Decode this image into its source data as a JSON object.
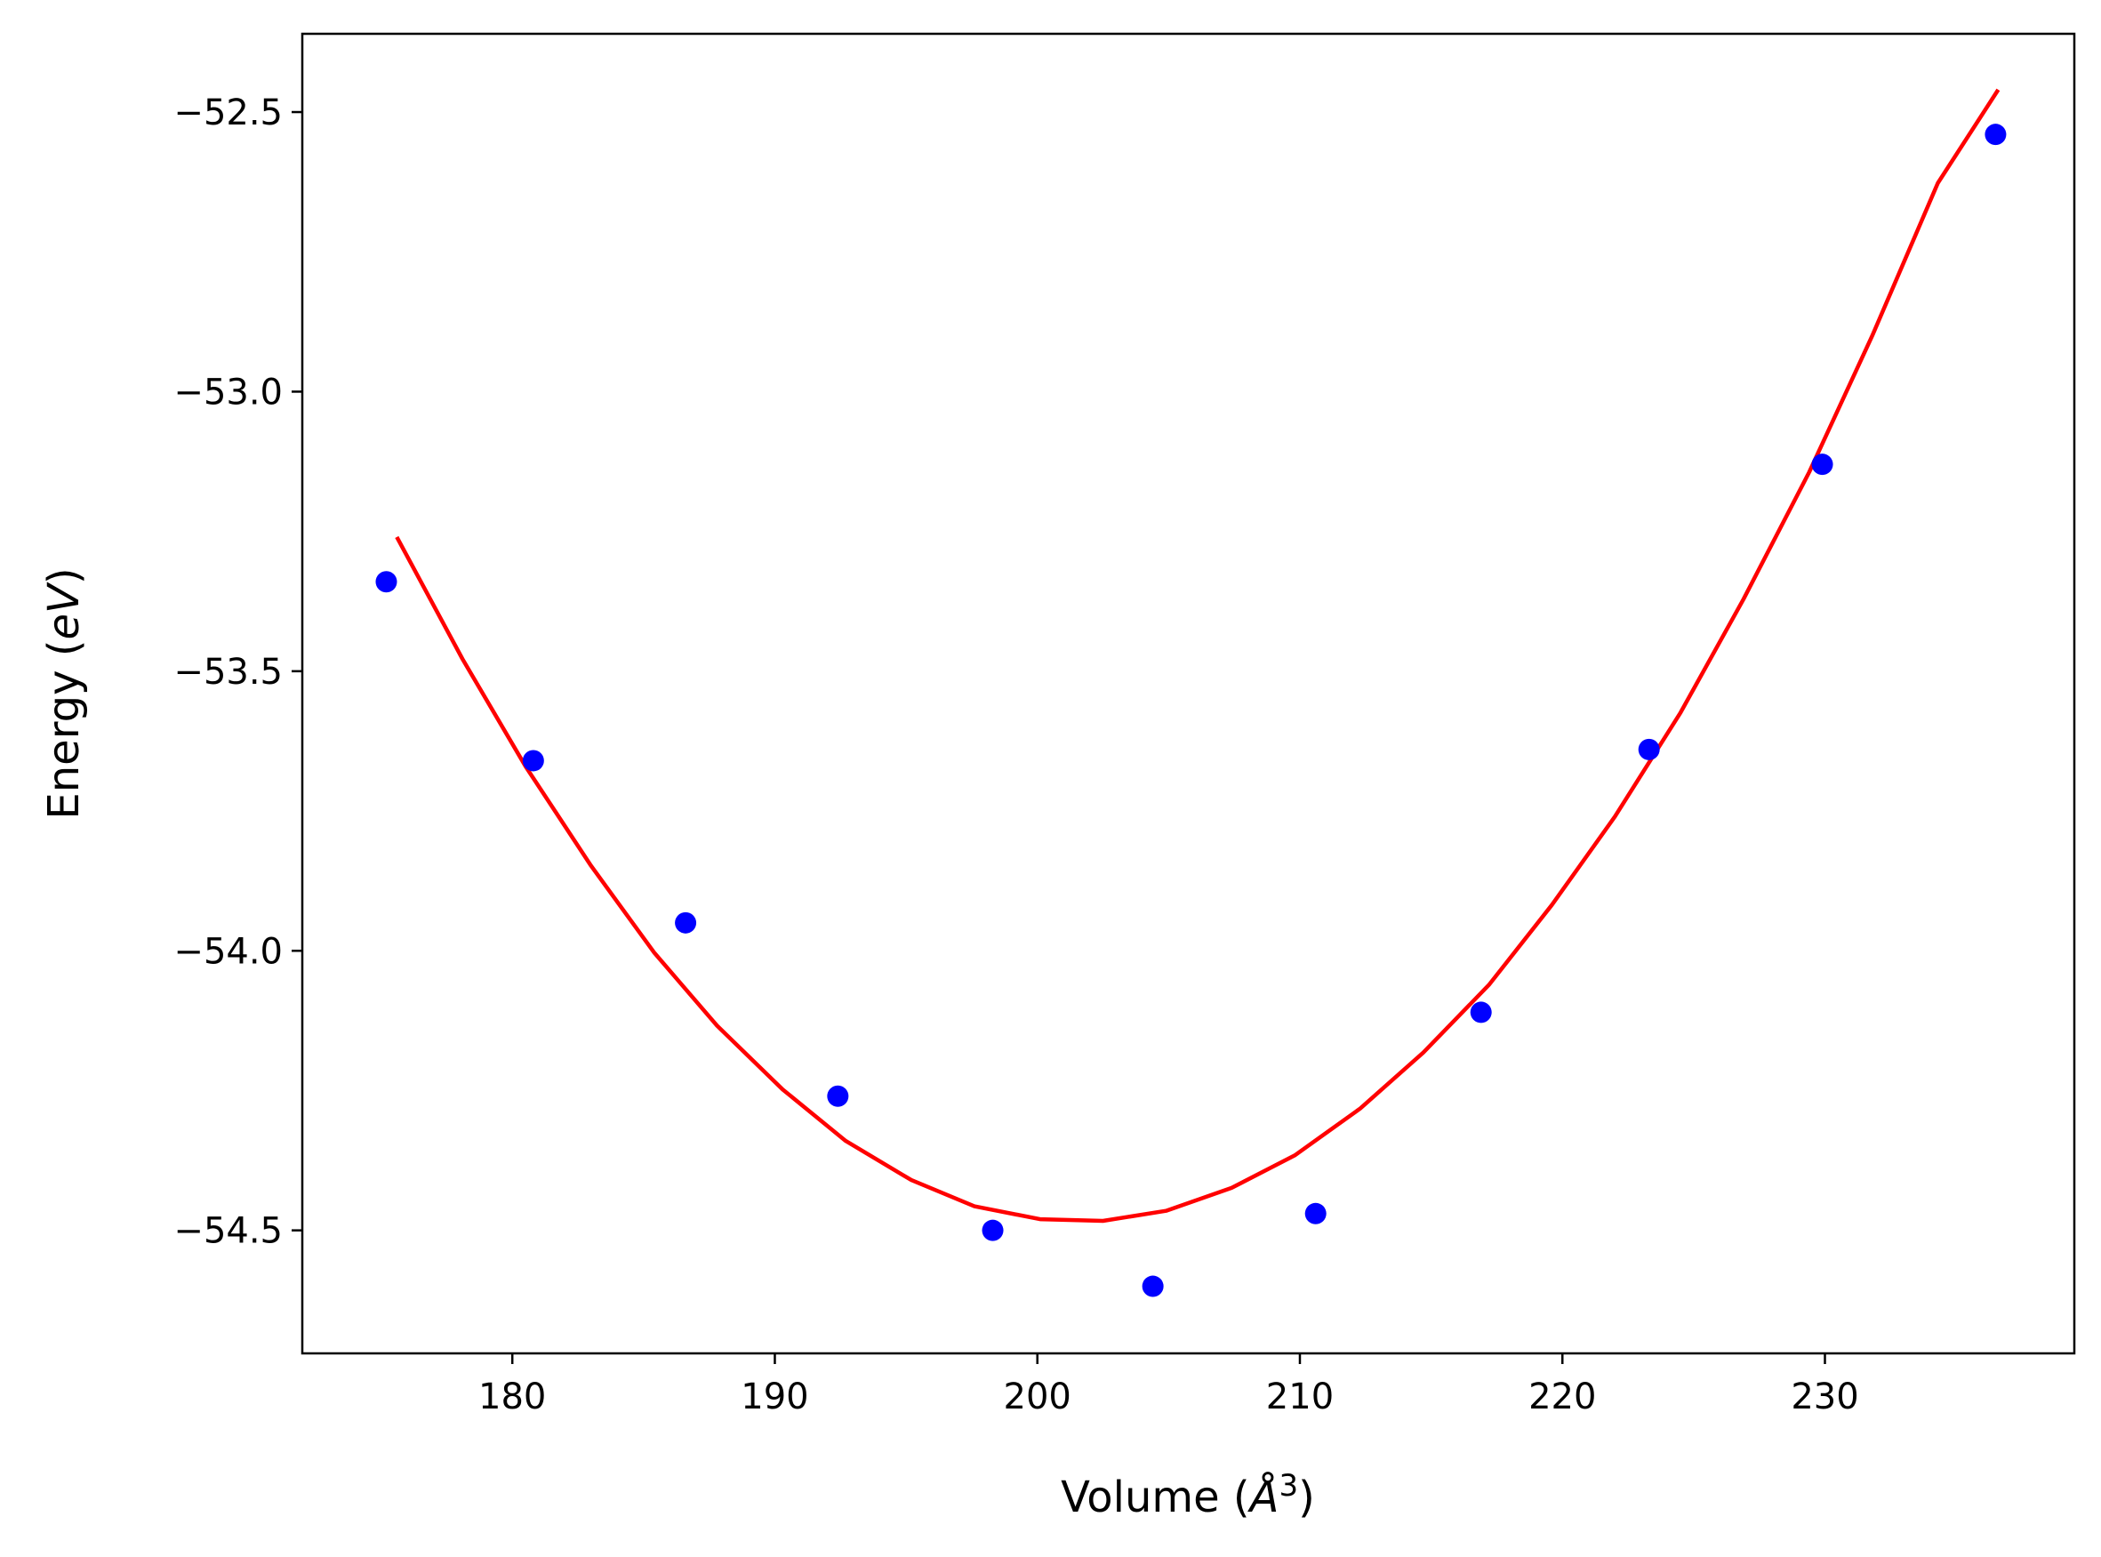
{
  "colors": {
    "background": "#ffffff",
    "axes": "#000000",
    "points": "#0000ff",
    "fit_line": "#ff0000"
  },
  "chart_data": {
    "type": "scatter",
    "title": "",
    "xlabel": "Volume",
    "xlabel_unit": "Å",
    "xlabel_unit_exponent": "3",
    "ylabel": "Energy",
    "ylabel_unit": "eV",
    "xlim": [
      172,
      239.5
    ],
    "ylim": [
      -54.72,
      -52.36
    ],
    "xticks": [
      180,
      190,
      200,
      210,
      220,
      230
    ],
    "xtick_labels": [
      "180",
      "190",
      "200",
      "210",
      "220",
      "230"
    ],
    "yticks": [
      -54.5,
      -54.0,
      -53.5,
      -53.0,
      -52.5
    ],
    "ytick_labels": [
      "−54.5",
      "−54.0",
      "−53.5",
      "−53.0",
      "−52.5"
    ],
    "grid": false,
    "legend": "none",
    "series": [
      {
        "type": "scatter",
        "color": "#0000ff",
        "x": [
          175.2,
          180.8,
          186.6,
          192.4,
          198.3,
          204.4,
          210.6,
          216.9,
          223.3,
          229.9,
          236.5
        ],
        "y": [
          -53.34,
          -53.66,
          -53.95,
          -54.26,
          -54.5,
          -54.6,
          -54.47,
          -54.11,
          -53.64,
          -53.13,
          -52.54
        ]
      },
      {
        "type": "line",
        "color": "#ff0000",
        "x": [
          175.6,
          178.1,
          180.5,
          183.0,
          185.4,
          187.8,
          190.3,
          192.7,
          195.2,
          197.6,
          200.1,
          202.5,
          204.9,
          207.4,
          209.8,
          212.3,
          214.7,
          217.2,
          219.6,
          222.0,
          224.5,
          226.9,
          229.4,
          231.8,
          234.3,
          236.6
        ],
        "y": [
          -53.26,
          -53.478,
          -53.67,
          -53.848,
          -54.003,
          -54.134,
          -54.248,
          -54.34,
          -54.41,
          -54.457,
          -54.48,
          -54.483,
          -54.465,
          -54.424,
          -54.366,
          -54.282,
          -54.182,
          -54.061,
          -53.918,
          -53.76,
          -53.574,
          -53.371,
          -53.144,
          -52.9,
          -52.627,
          -52.46
        ]
      }
    ]
  }
}
